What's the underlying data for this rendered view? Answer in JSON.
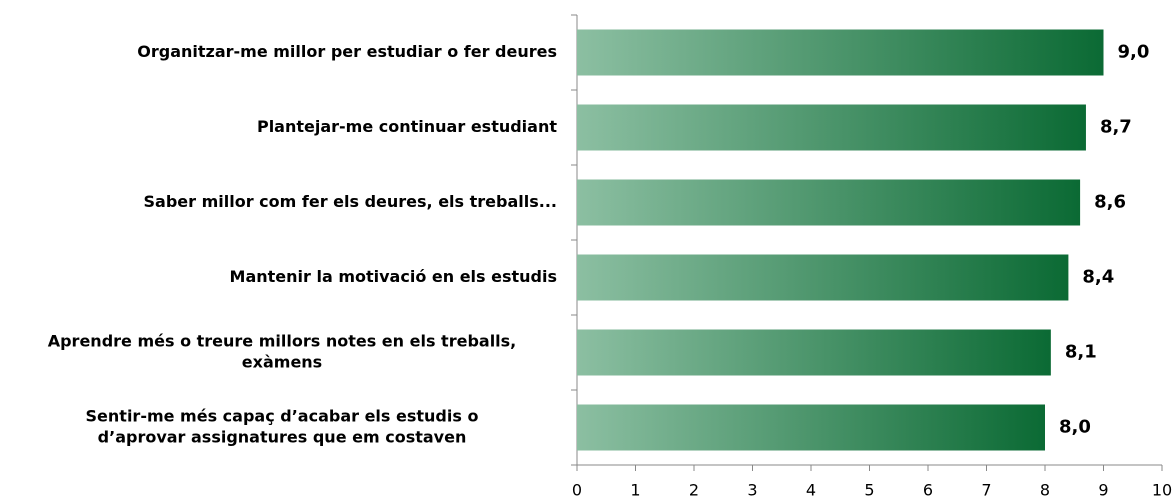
{
  "chart_data": {
    "type": "bar",
    "orientation": "horizontal",
    "categories": [
      [
        "Organitzar-me millor per estudiar o fer deures"
      ],
      [
        "Plantejar-me continuar estudiant"
      ],
      [
        "Saber millor com fer els deures, els treballs..."
      ],
      [
        "Mantenir la motivació en els estudis"
      ],
      [
        "Aprendre més o treure millors notes en els treballs,",
        "exàmens"
      ],
      [
        "Sentir-me més capaç d’acabar els estudis o",
        "d’aprovar assignatures que em costaven"
      ]
    ],
    "values": [
      9.0,
      8.7,
      8.6,
      8.4,
      8.1,
      8.0
    ],
    "value_labels": [
      "9,0",
      "8,7",
      "8,6",
      "8,4",
      "8,1",
      "8,0"
    ],
    "gradient": [
      "#8cbfa2",
      "#0b6a34"
    ],
    "xlim": [
      0,
      10
    ],
    "xticks": [
      0,
      1,
      2,
      3,
      4,
      5,
      6,
      7,
      8,
      9,
      10
    ],
    "grid": false
  }
}
